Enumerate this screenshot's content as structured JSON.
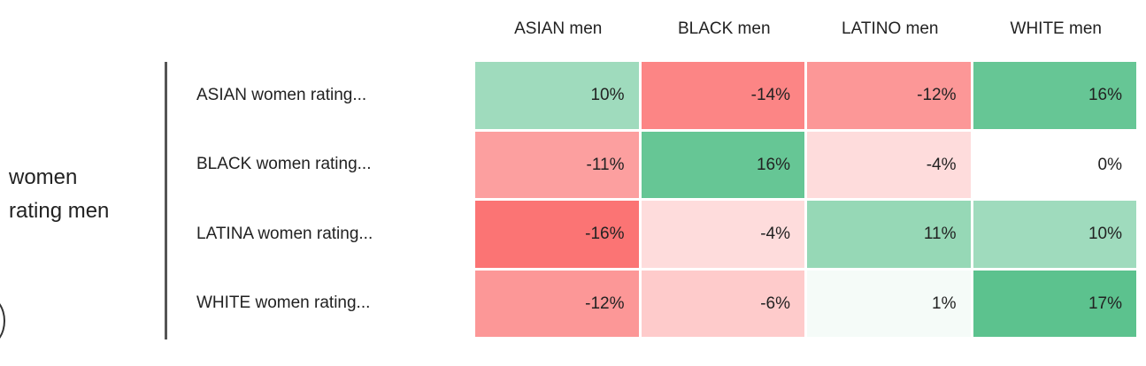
{
  "chart_data": {
    "type": "heatmap",
    "group_label": [
      "women",
      "rating men"
    ],
    "columns": [
      "ASIAN men",
      "BLACK men",
      "LATINO men",
      "WHITE men"
    ],
    "rows": [
      "ASIAN women rating...",
      "BLACK women rating...",
      "LATINA women rating...",
      "WHITE women rating..."
    ],
    "values": [
      [
        10,
        -14,
        -12,
        16
      ],
      [
        -11,
        16,
        -4,
        0
      ],
      [
        -16,
        -4,
        11,
        10
      ],
      [
        -12,
        -6,
        1,
        17
      ]
    ],
    "labels": [
      [
        "10%",
        "-14%",
        "-12%",
        "16%"
      ],
      [
        "-11%",
        "16%",
        "-4%",
        "0%"
      ],
      [
        "-16%",
        "-4%",
        "11%",
        "10%"
      ],
      [
        "-12%",
        "-6%",
        "1%",
        "17%"
      ]
    ],
    "value_unit": "%",
    "color_scale": {
      "negative": "#fb6b6b",
      "neutral": "#ffffff",
      "positive": "#5cc28e"
    }
  }
}
